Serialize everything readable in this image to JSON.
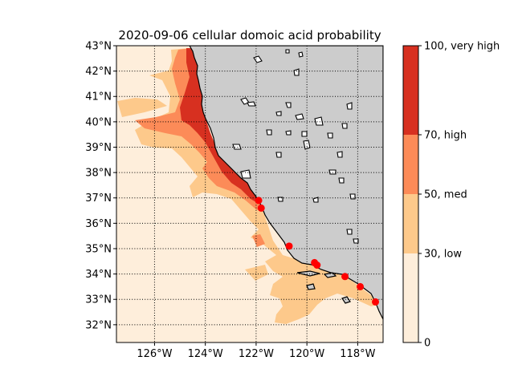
{
  "title": "2020-09-06 cellular domoic acid probability",
  "map": {
    "lon_range": [
      -127.5,
      -117.0
    ],
    "lat_range": [
      31.3,
      43.0
    ],
    "lon_ticks": [
      {
        "value": -126,
        "label": "126$^\\circ$W"
      },
      {
        "value": -124,
        "label": "124$^\\circ$W"
      },
      {
        "value": -122,
        "label": "122$^\\circ$W"
      },
      {
        "value": -120,
        "label": "120$^\\circ$W"
      },
      {
        "value": -118,
        "label": "118$^\\circ$W"
      }
    ],
    "lat_ticks": [
      {
        "value": 32,
        "label": "32$^\\circ$N"
      },
      {
        "value": 33,
        "label": "33$^\\circ$N"
      },
      {
        "value": 34,
        "label": "34$^\\circ$N"
      },
      {
        "value": 35,
        "label": "35$^\\circ$N"
      },
      {
        "value": 36,
        "label": "36$^\\circ$N"
      },
      {
        "value": 37,
        "label": "37$^\\circ$N"
      },
      {
        "value": 38,
        "label": "38$^\\circ$N"
      },
      {
        "value": 39,
        "label": "39$^\\circ$N"
      },
      {
        "value": 40,
        "label": "40$^\\circ$N"
      },
      {
        "value": 41,
        "label": "41$^\\circ$N"
      },
      {
        "value": 42,
        "label": "42$^\\circ$N"
      },
      {
        "value": 43,
        "label": "43$^\\circ$N"
      }
    ],
    "gridlines": true,
    "land_color": "#cccccc",
    "coastline_color": "#000000",
    "background_level_color": "#feeedb",
    "stations": [
      {
        "lon": -121.9,
        "lat": 36.9
      },
      {
        "lon": -121.8,
        "lat": 36.6
      },
      {
        "lon": -120.7,
        "lat": 35.1
      },
      {
        "lon": -119.7,
        "lat": 34.45
      },
      {
        "lon": -119.6,
        "lat": 34.35
      },
      {
        "lon": -118.5,
        "lat": 33.9
      },
      {
        "lon": -117.9,
        "lat": 33.5
      },
      {
        "lon": -117.3,
        "lat": 32.9
      }
    ],
    "station_color": "#ff0000"
  },
  "colorbar": {
    "levels": [
      {
        "from": 0,
        "to": 30,
        "color": "#feeedb"
      },
      {
        "from": 30,
        "to": 50,
        "color": "#fdc98b"
      },
      {
        "from": 50,
        "to": 70,
        "color": "#fc8b58"
      },
      {
        "from": 70,
        "to": 100,
        "color": "#d73020"
      }
    ],
    "ticks": [
      {
        "value": 0,
        "label": "0"
      },
      {
        "value": 30,
        "label": "30, low"
      },
      {
        "value": 50,
        "label": "50, med"
      },
      {
        "value": 70,
        "label": "70, high"
      },
      {
        "value": 100,
        "label": "100, very high"
      }
    ]
  }
}
